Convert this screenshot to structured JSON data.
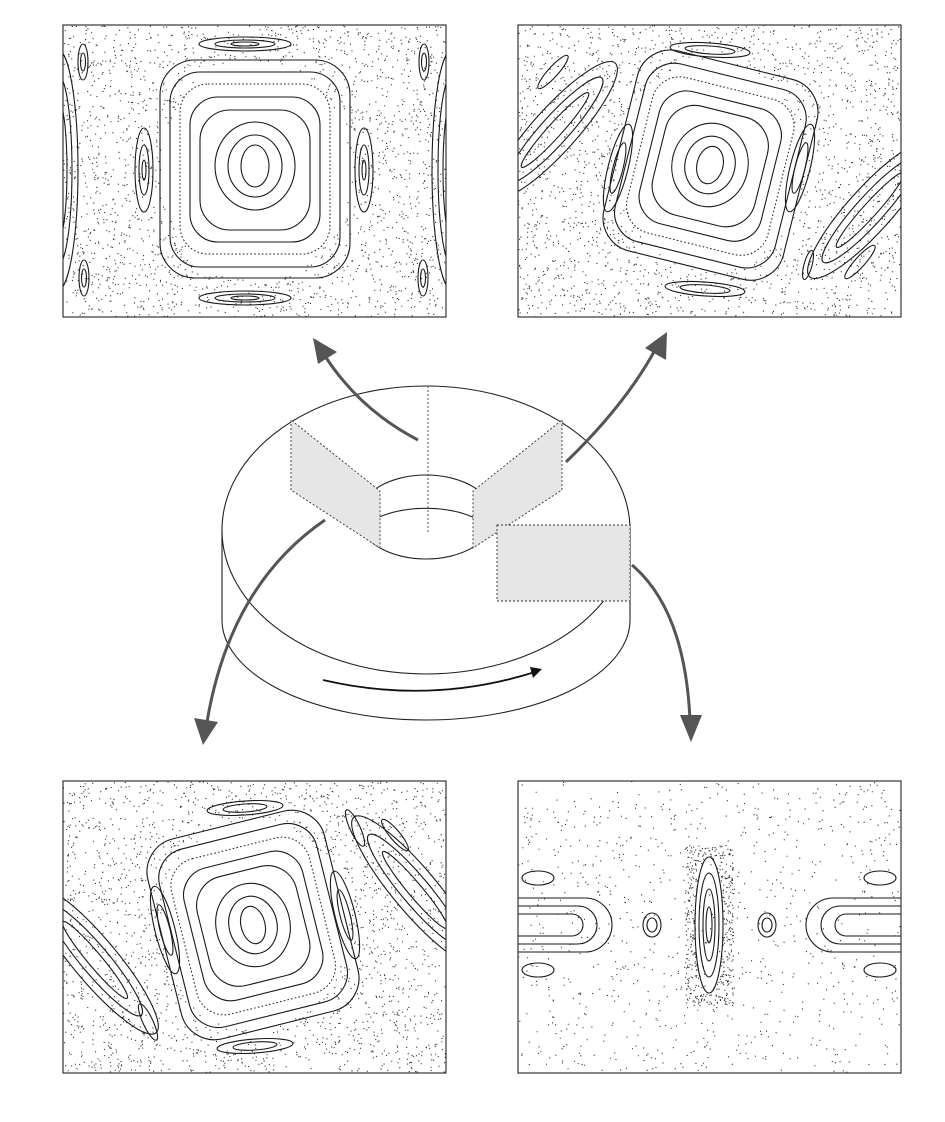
{
  "figure": {
    "panels": [
      {
        "id": "top-left",
        "section": "poloidal-section-1",
        "tilt_deg": 0
      },
      {
        "id": "top-right",
        "section": "poloidal-section-2",
        "tilt_deg": 14
      },
      {
        "id": "bottom-left",
        "section": "poloidal-section-3",
        "tilt_deg": -14
      },
      {
        "id": "bottom-right",
        "section": "toroidal-section",
        "tilt_deg": 0
      }
    ],
    "arrow_color": "#555555",
    "section_fill": "#e6e6e6",
    "rotation_direction": "counterclockwise-arrow-on-front-face"
  }
}
